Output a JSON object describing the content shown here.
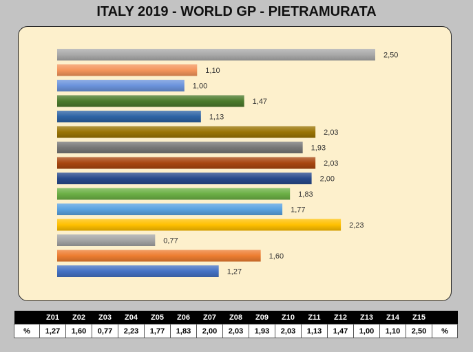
{
  "title": "ITALY 2019 - WORLD GP - PIETRAMURATA",
  "chart_data": {
    "type": "bar",
    "orientation": "horizontal",
    "categories": [
      "Z15",
      "Z14",
      "Z13",
      "Z12",
      "Z11",
      "Z10",
      "Z09",
      "Z08",
      "Z07",
      "Z06",
      "Z05",
      "Z04",
      "Z03",
      "Z02",
      "Z01"
    ],
    "values": [
      2.5,
      1.1,
      1.0,
      1.47,
      1.13,
      2.03,
      1.93,
      2.03,
      2.0,
      1.83,
      1.77,
      2.23,
      0.77,
      1.6,
      1.27
    ],
    "labels": [
      "2,50",
      "1,10",
      "1,00",
      "1,47",
      "1,13",
      "2,03",
      "1,93",
      "2,03",
      "2,00",
      "1,83",
      "1,77",
      "2,23",
      "0,77",
      "1,60",
      "1,27"
    ],
    "colors": [
      "#a9a9a9",
      "#f4955c",
      "#6b93dc",
      "#4b7a2c",
      "#2e63a4",
      "#9a7404",
      "#777777",
      "#a84710",
      "#284a8c",
      "#6cb046",
      "#5aa2e0",
      "#ffc000",
      "#a5a5a5",
      "#ed7d31",
      "#4472c4"
    ],
    "xlim": [
      0,
      2.5
    ],
    "grid": false,
    "legend": "none"
  },
  "table": {
    "row_label": "%",
    "headers": [
      "Z01",
      "Z02",
      "Z03",
      "Z04",
      "Z05",
      "Z06",
      "Z07",
      "Z08",
      "Z09",
      "Z10",
      "Z11",
      "Z12",
      "Z13",
      "Z14",
      "Z15"
    ],
    "values": [
      "1,27",
      "1,60",
      "0,77",
      "2,23",
      "1,77",
      "1,83",
      "2,00",
      "2,03",
      "1,93",
      "2,03",
      "1,13",
      "1,47",
      "1,00",
      "1,10",
      "2,50"
    ]
  }
}
